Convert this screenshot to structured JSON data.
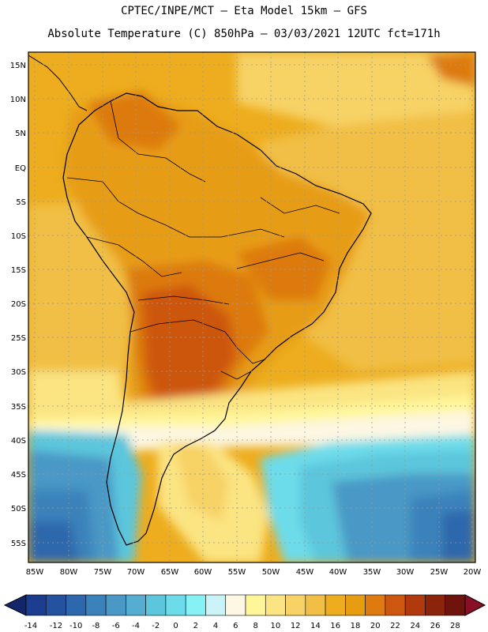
{
  "header": {
    "line1": "CPTEC/INPE/MCT –  Eta Model 15km – GFS",
    "line2": "Absolute Temperature (C) 850hPa – 03/03/2021 12UTC fct=171h"
  },
  "axes": {
    "lat_labels": [
      "15N",
      "10N",
      "5N",
      "EQ",
      "5S",
      "10S",
      "15S",
      "20S",
      "25S",
      "30S",
      "35S",
      "40S",
      "45S",
      "50S",
      "55S"
    ],
    "lon_labels": [
      "85W",
      "80W",
      "75W",
      "70W",
      "65W",
      "60W",
      "55W",
      "50W",
      "45W",
      "40W",
      "35W",
      "30W",
      "25W",
      "20W"
    ]
  },
  "colorbar": {
    "labels": [
      "-14",
      "-12",
      "-10",
      "-8",
      "-6",
      "-4",
      "-2",
      "0",
      "2",
      "4",
      "6",
      "8",
      "10",
      "12",
      "14",
      "16",
      "18",
      "20",
      "22",
      "24",
      "26",
      "28"
    ],
    "colors": [
      "#1c3d8f",
      "#24529e",
      "#2e68ac",
      "#3b82bb",
      "#4a98c6",
      "#55aed2",
      "#5bc6dc",
      "#6ddcea",
      "#86f2f6",
      "#c9f3f7",
      "#fdf7e3",
      "#fff69a",
      "#fbe482",
      "#f7d265",
      "#f1bf45",
      "#edad1e",
      "#e79c12",
      "#dd7a10",
      "#cd570f",
      "#b03a0e",
      "#8c240c",
      "#6e140c"
    ]
  },
  "colors": {
    "warm_bg": "#edad1e",
    "hot": "#dd7a10",
    "very_hot": "#cd570f",
    "cold": "#4a98c6",
    "very_cold": "#2e68ac"
  }
}
